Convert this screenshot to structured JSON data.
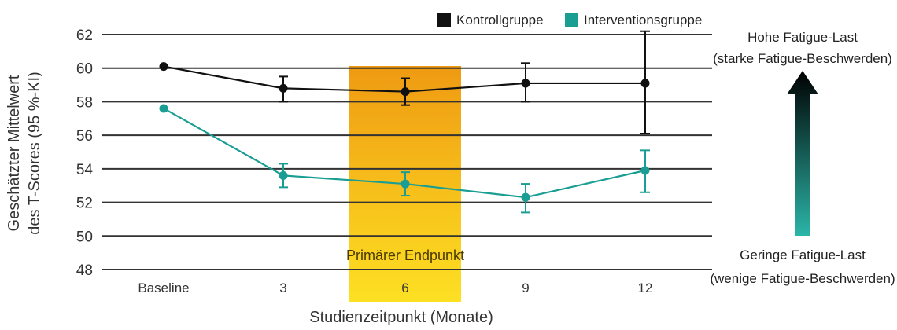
{
  "chart_data": {
    "type": "line",
    "categories": [
      "Baseline",
      "3",
      "6",
      "9",
      "12"
    ],
    "xlabel": "Studienzeitpunkt (Monate)",
    "ylabel_line1": "Geschätzter Mittelwert",
    "ylabel_line2": "des T-Scores (95 %-KI)",
    "ylim": [
      48,
      62
    ],
    "yticks": [
      48,
      50,
      52,
      54,
      56,
      58,
      60,
      62
    ],
    "grid": true,
    "legend_position": "top-right",
    "series": [
      {
        "name": "Kontrollgruppe",
        "color": "#111111",
        "values": [
          60.1,
          58.8,
          58.6,
          59.1,
          59.1
        ],
        "ci_low": [
          null,
          58.0,
          57.8,
          58.0,
          56.1
        ],
        "ci_high": [
          null,
          59.5,
          59.4,
          60.3,
          62.2
        ]
      },
      {
        "name": "Interventionsgruppe",
        "color": "#1a9e94",
        "values": [
          57.6,
          53.6,
          53.1,
          52.3,
          53.9
        ],
        "ci_low": [
          null,
          52.9,
          52.4,
          51.4,
          52.6
        ],
        "ci_high": [
          null,
          54.3,
          53.8,
          53.1,
          55.1
        ]
      }
    ],
    "highlight": {
      "category": "6",
      "label": "Primärer Endpunkt",
      "color_top": "#ef9a12",
      "color_bottom": "#fde023"
    },
    "annotation_top": [
      "Hohe Fatigue-Last",
      "(starke Fatigue-Beschwerden)"
    ],
    "annotation_bottom": [
      "Geringe Fatigue-Last",
      "(wenige Fatigue-Beschwerden)"
    ]
  }
}
